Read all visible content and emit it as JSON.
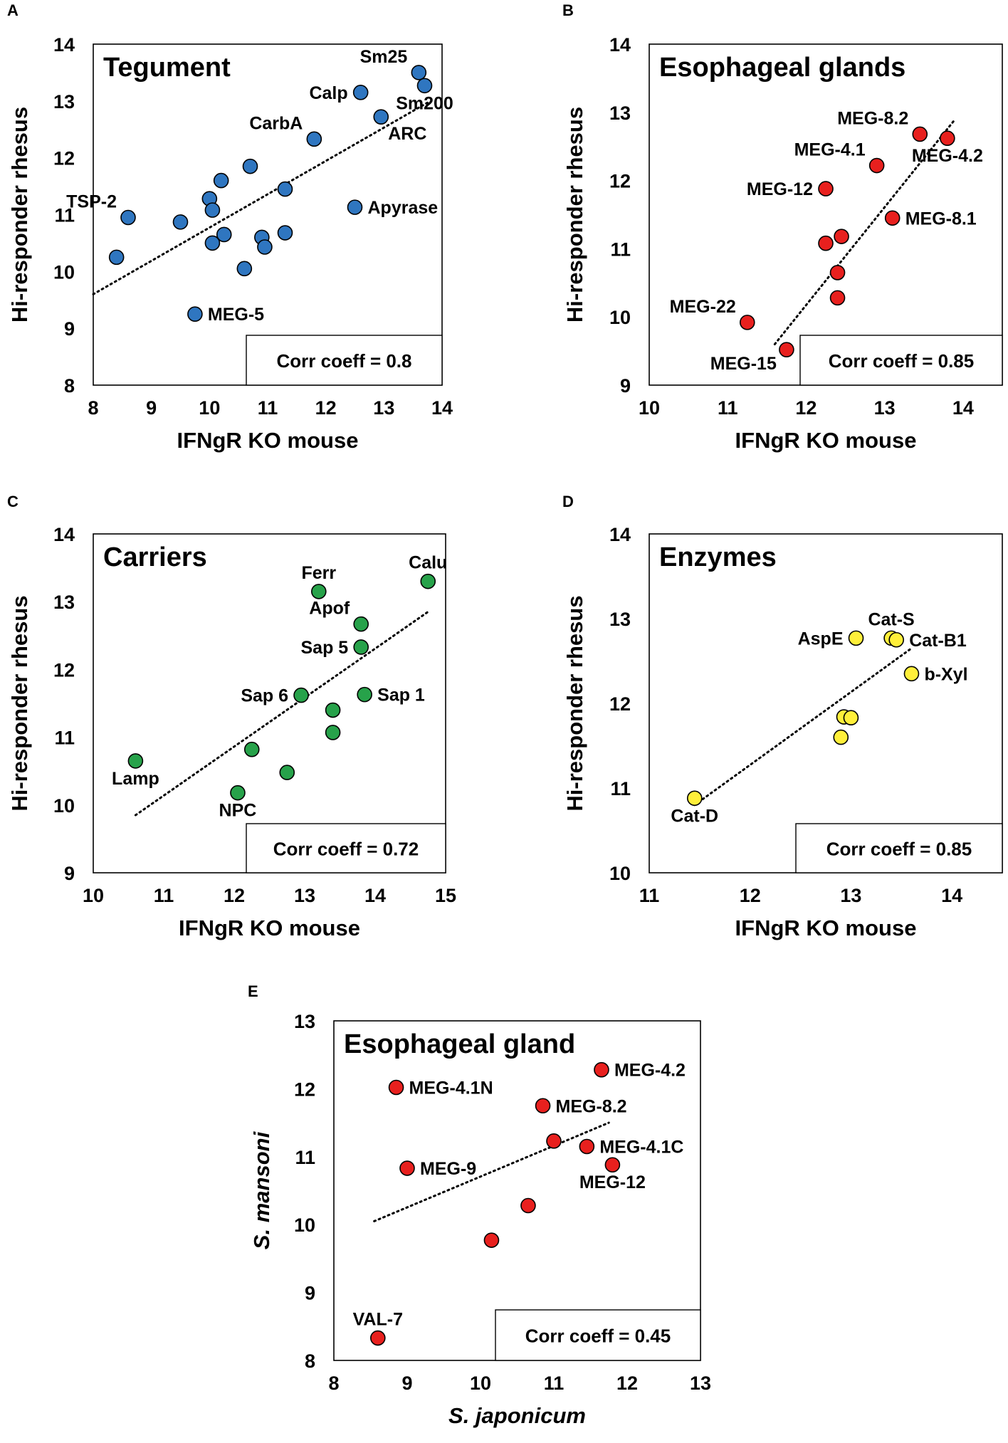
{
  "chart_data": [
    {
      "type": "scatter",
      "panel": "A",
      "title": "Tegument",
      "xlabel": "IFNgR KO mouse",
      "ylabel": "Hi-responder rhesus",
      "xlim": [
        8,
        14
      ],
      "ylim": [
        8,
        14
      ],
      "xticks": [
        "8",
        "9",
        "10",
        "11",
        "12",
        "13",
        "14"
      ],
      "yticks": [
        "8",
        "9",
        "10",
        "11",
        "12",
        "13",
        "14"
      ],
      "color": "#2f76c0",
      "corr": "Corr coeff = 0.8",
      "trend": [
        [
          8,
          9.6
        ],
        [
          13.8,
          13.0
        ]
      ],
      "points": [
        {
          "x": 13.6,
          "y": 13.5,
          "label": "Sm25",
          "pos": "tl"
        },
        {
          "x": 13.7,
          "y": 13.27,
          "label": "Sm200",
          "pos": "b"
        },
        {
          "x": 12.6,
          "y": 13.15,
          "label": "Calp",
          "pos": "l"
        },
        {
          "x": 12.95,
          "y": 12.72,
          "label": "ARC",
          "pos": "br"
        },
        {
          "x": 11.8,
          "y": 12.33,
          "label": "CarbA",
          "pos": "tl"
        },
        {
          "x": 10.7,
          "y": 11.85,
          "label": "",
          "pos": ""
        },
        {
          "x": 10.2,
          "y": 11.6,
          "label": "",
          "pos": ""
        },
        {
          "x": 11.3,
          "y": 11.45,
          "label": "",
          "pos": ""
        },
        {
          "x": 8.6,
          "y": 10.95,
          "label": "TSP-2",
          "pos": "tl"
        },
        {
          "x": 10.0,
          "y": 11.28,
          "label": "",
          "pos": ""
        },
        {
          "x": 10.05,
          "y": 11.08,
          "label": "",
          "pos": ""
        },
        {
          "x": 12.5,
          "y": 11.13,
          "label": "Apyrase",
          "pos": "r"
        },
        {
          "x": 9.5,
          "y": 10.87,
          "label": "",
          "pos": ""
        },
        {
          "x": 10.25,
          "y": 10.65,
          "label": "",
          "pos": ""
        },
        {
          "x": 10.9,
          "y": 10.6,
          "label": "",
          "pos": ""
        },
        {
          "x": 11.3,
          "y": 10.68,
          "label": "",
          "pos": ""
        },
        {
          "x": 10.05,
          "y": 10.5,
          "label": "",
          "pos": ""
        },
        {
          "x": 10.95,
          "y": 10.43,
          "label": "",
          "pos": ""
        },
        {
          "x": 8.4,
          "y": 10.25,
          "label": "",
          "pos": ""
        },
        {
          "x": 10.6,
          "y": 10.05,
          "label": "",
          "pos": ""
        },
        {
          "x": 9.75,
          "y": 9.25,
          "label": "MEG-5",
          "pos": "r"
        }
      ]
    },
    {
      "type": "scatter",
      "panel": "B",
      "title": "Esophageal glands",
      "xlabel": "IFNgR KO mouse",
      "ylabel": "Hi-responder rhesus",
      "xlim": [
        10,
        14.5
      ],
      "ylim": [
        9,
        14
      ],
      "xticks": [
        "10",
        "11",
        "12",
        "13",
        "14"
      ],
      "yticks": [
        "9",
        "10",
        "11",
        "12",
        "13",
        "14"
      ],
      "color": "#e8201e",
      "corr": "Corr coeff = 0.85",
      "trend": [
        [
          11.6,
          9.6
        ],
        [
          13.9,
          12.9
        ]
      ],
      "points": [
        {
          "x": 13.45,
          "y": 12.68,
          "label": "MEG-8.2",
          "pos": "tl"
        },
        {
          "x": 13.8,
          "y": 12.62,
          "label": "MEG-4.2",
          "pos": "b"
        },
        {
          "x": 12.9,
          "y": 12.22,
          "label": "MEG-4.1",
          "pos": "tl"
        },
        {
          "x": 12.25,
          "y": 11.88,
          "label": "MEG-12",
          "pos": "l"
        },
        {
          "x": 13.1,
          "y": 11.45,
          "label": "MEG-8.1",
          "pos": "r"
        },
        {
          "x": 12.45,
          "y": 11.18,
          "label": "",
          "pos": ""
        },
        {
          "x": 12.25,
          "y": 11.08,
          "label": "",
          "pos": ""
        },
        {
          "x": 12.4,
          "y": 10.65,
          "label": "",
          "pos": ""
        },
        {
          "x": 12.4,
          "y": 10.28,
          "label": "",
          "pos": ""
        },
        {
          "x": 11.25,
          "y": 9.92,
          "label": "MEG-22",
          "pos": "tl"
        },
        {
          "x": 11.75,
          "y": 9.52,
          "label": "MEG-15",
          "pos": "bl"
        }
      ]
    },
    {
      "type": "scatter",
      "panel": "C",
      "title": "Carriers",
      "xlabel": "IFNgR KO mouse",
      "ylabel": "Hi-responder rhesus",
      "xlim": [
        10,
        15
      ],
      "ylim": [
        9,
        14
      ],
      "xticks": [
        "10",
        "11",
        "12",
        "13",
        "14",
        "15"
      ],
      "yticks": [
        "9",
        "10",
        "11",
        "12",
        "13",
        "14"
      ],
      "color": "#27a24a",
      "corr": "Corr coeff = 0.72",
      "trend": [
        [
          10.6,
          9.85
        ],
        [
          14.75,
          12.85
        ]
      ],
      "points": [
        {
          "x": 14.75,
          "y": 13.3,
          "label": "Calu",
          "pos": "t"
        },
        {
          "x": 13.2,
          "y": 13.15,
          "label": "Ferr",
          "pos": "t"
        },
        {
          "x": 13.8,
          "y": 12.67,
          "label": "Apof",
          "pos": "tl"
        },
        {
          "x": 13.8,
          "y": 12.33,
          "label": "Sap 5",
          "pos": "l"
        },
        {
          "x": 13.85,
          "y": 11.63,
          "label": "Sap 1",
          "pos": "r"
        },
        {
          "x": 12.95,
          "y": 11.62,
          "label": "Sap 6",
          "pos": "l"
        },
        {
          "x": 13.4,
          "y": 11.4,
          "label": "",
          "pos": ""
        },
        {
          "x": 13.4,
          "y": 11.07,
          "label": "",
          "pos": ""
        },
        {
          "x": 12.25,
          "y": 10.82,
          "label": "",
          "pos": ""
        },
        {
          "x": 12.75,
          "y": 10.48,
          "label": "",
          "pos": ""
        },
        {
          "x": 10.6,
          "y": 10.65,
          "label": "Lamp",
          "pos": "b"
        },
        {
          "x": 12.05,
          "y": 10.18,
          "label": "NPC",
          "pos": "b"
        }
      ]
    },
    {
      "type": "scatter",
      "panel": "D",
      "title": "Enzymes",
      "xlabel": "IFNgR KO mouse",
      "ylabel": "Hi-responder rhesus",
      "xlim": [
        11,
        14.5
      ],
      "ylim": [
        10,
        14
      ],
      "xticks": [
        "11",
        "12",
        "13",
        "14"
      ],
      "yticks": [
        "10",
        "11",
        "12",
        "13",
        "14"
      ],
      "color": "#ffef3a",
      "corr": "Corr coeff = 0.85",
      "trend": [
        [
          11.45,
          10.8
        ],
        [
          13.6,
          12.65
        ]
      ],
      "points": [
        {
          "x": 13.05,
          "y": 12.77,
          "label": "AspE",
          "pos": "l"
        },
        {
          "x": 13.4,
          "y": 12.77,
          "label": "Cat-S",
          "pos": "t"
        },
        {
          "x": 13.45,
          "y": 12.75,
          "label": "Cat-B1",
          "pos": "r"
        },
        {
          "x": 13.6,
          "y": 12.35,
          "label": "b-Xyl",
          "pos": "r"
        },
        {
          "x": 12.93,
          "y": 11.84,
          "label": "",
          "pos": ""
        },
        {
          "x": 13.0,
          "y": 11.83,
          "label": "",
          "pos": ""
        },
        {
          "x": 12.9,
          "y": 11.6,
          "label": "",
          "pos": ""
        },
        {
          "x": 11.45,
          "y": 10.88,
          "label": "Cat-D",
          "pos": "b"
        }
      ]
    },
    {
      "type": "scatter",
      "panel": "E",
      "title": "Esophageal gland",
      "xlabel": "S. japonicum",
      "ylabel": "S. mansoni",
      "xlim": [
        8,
        13
      ],
      "ylim": [
        8,
        13
      ],
      "xticks": [
        "8",
        "9",
        "10",
        "11",
        "12",
        "13"
      ],
      "yticks": [
        "8",
        "9",
        "10",
        "11",
        "12",
        "13"
      ],
      "color": "#e8201e",
      "corr": "Corr coeff = 0.45",
      "trend": [
        [
          8.55,
          10.05
        ],
        [
          11.75,
          11.5
        ]
      ],
      "points": [
        {
          "x": 11.65,
          "y": 12.28,
          "label": "MEG-4.2",
          "pos": "r"
        },
        {
          "x": 8.85,
          "y": 12.02,
          "label": "MEG-4.1N",
          "pos": "r"
        },
        {
          "x": 10.85,
          "y": 11.75,
          "label": "MEG-8.2",
          "pos": "r"
        },
        {
          "x": 11.0,
          "y": 11.23,
          "label": "",
          "pos": ""
        },
        {
          "x": 11.45,
          "y": 11.15,
          "label": "MEG-4.1C",
          "pos": "r"
        },
        {
          "x": 9.0,
          "y": 10.83,
          "label": "MEG-9",
          "pos": "r"
        },
        {
          "x": 11.8,
          "y": 10.88,
          "label": "MEG-12",
          "pos": "b"
        },
        {
          "x": 10.65,
          "y": 10.28,
          "label": "",
          "pos": ""
        },
        {
          "x": 10.15,
          "y": 9.77,
          "label": "",
          "pos": ""
        },
        {
          "x": 8.6,
          "y": 8.33,
          "label": "VAL-7",
          "pos": "t"
        }
      ]
    }
  ]
}
